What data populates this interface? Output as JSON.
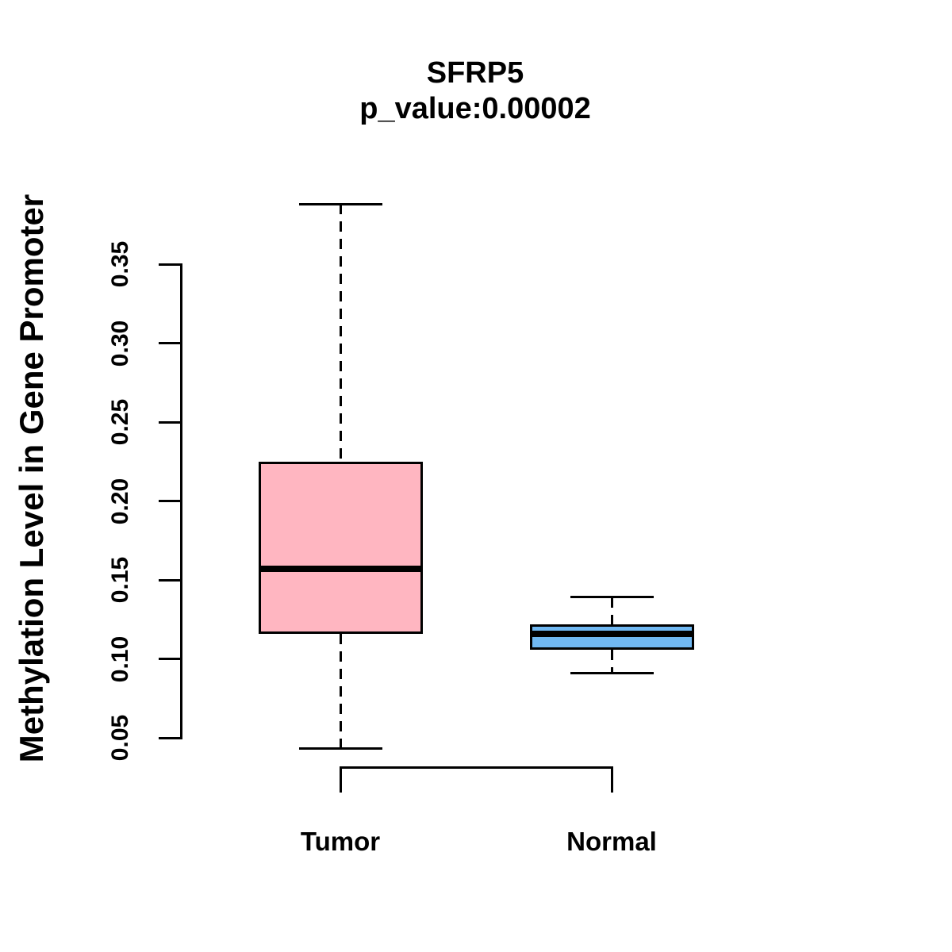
{
  "chart_data": {
    "type": "boxplot",
    "title": "SFRP5",
    "subtitle": "p_value:0.00002",
    "ylabel": "Methylation Level in Gene Promoter",
    "categories": [
      "Tumor",
      "Normal"
    ],
    "y_ticks": [
      0.05,
      0.1,
      0.15,
      0.2,
      0.25,
      0.3,
      0.35
    ],
    "y_tick_labels": [
      "0.05",
      "0.10",
      "0.15",
      "0.20",
      "0.25",
      "0.30",
      "0.35"
    ],
    "ylim": [
      0.04,
      0.39
    ],
    "grid": false,
    "legend": false,
    "whisker_style": "dashed",
    "series": [
      {
        "name": "Tumor",
        "fill_color": "#FFB6C1",
        "stroke_color": "#000000",
        "lower_whisker": 0.043,
        "q1": 0.116,
        "median": 0.157,
        "q3": 0.225,
        "upper_whisker": 0.388
      },
      {
        "name": "Normal",
        "fill_color": "#70B8F2",
        "stroke_color": "#000000",
        "lower_whisker": 0.091,
        "q1": 0.106,
        "median": 0.116,
        "q3": 0.122,
        "upper_whisker": 0.139
      }
    ],
    "x_axis_bracket": {
      "from": "Tumor",
      "to": "Normal"
    }
  }
}
